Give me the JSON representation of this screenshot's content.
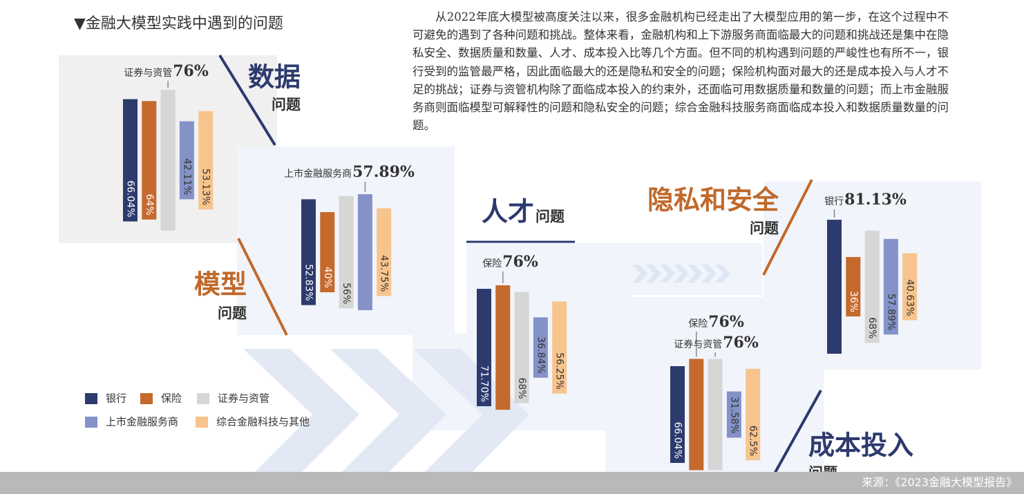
{
  "title": "▼金融大模型实践中遇到的问题",
  "paragraph": "从2022年底大模型被高度关注以来，很多金融机构已经走出了大模型应用的第一步，在这个过程中不可避免的遇到了各种问题和挑战。整体来看，金融机构和上下游服务商面临最大的问题和挑战还是集中在隐私安全、数据质量和数量、人才、成本投入比等几个方面。但不同的机构遇到问题的严峻性也有所不一，银行受到的监管最严格，因此面临最大的还是隐私和安全的问题；保险机构面对最大的还是成本投入与人才不足的挑战；证券与资管机构除了面临成本投入的约束外，还面临可用数据质量和数量的问题；而上市金融服务商则面临模型可解释性的问题和隐私安全的问题；综合金融科技服务商面临成本投入和数据质量数量的问题。",
  "categories": [
    "银行",
    "保险",
    "证券与资管",
    "上市金融服务商",
    "综合金融科技与其他"
  ],
  "colors": [
    "#2d3a6e",
    "#c5692d",
    "#d6d6d6",
    "#8492c8",
    "#f8c48e"
  ],
  "source": "来源：《2023金融大模型报告》",
  "chart_data": [
    {
      "type": "bar",
      "title": "数据",
      "subtitle": "问题",
      "title_color": "#2d3a6e",
      "values": [
        66.04,
        64,
        76,
        42.11,
        53.13
      ],
      "value_labels": [
        "66.04%",
        "64%",
        "76%",
        "42.11%",
        "53.13%"
      ]
    },
    {
      "type": "bar",
      "title": "模型",
      "subtitle": "问题",
      "title_color": "#c0692b",
      "values": [
        52.83,
        40,
        56,
        57.89,
        43.75
      ],
      "value_labels": [
        "52.83%",
        "40%",
        "56%",
        "57.89%",
        "43.75%"
      ]
    },
    {
      "type": "bar",
      "title": "人才",
      "subtitle": "问题",
      "title_color": "#2d3a6e",
      "values": [
        71.7,
        76,
        68,
        36.84,
        56.25
      ],
      "value_labels": [
        "71.70%",
        "76%",
        "68%",
        "36.84%",
        "56.25%"
      ]
    },
    {
      "type": "bar",
      "title": "隐私和安全",
      "subtitle": "问题",
      "title_color": "#c0692b",
      "values": [
        81.13,
        36,
        68,
        57.89,
        40.63
      ],
      "value_labels": [
        "81.13%",
        "36%",
        "68%",
        "57.89%",
        "40.63%"
      ]
    },
    {
      "type": "bar",
      "title": "成本投入",
      "subtitle": "问题",
      "title_color": "#2d3a6e",
      "values": [
        66.04,
        76,
        76,
        31.58,
        62.5
      ],
      "value_labels": [
        "66.04%",
        "76%",
        "76%",
        "31.58%",
        "62.5%"
      ]
    }
  ]
}
